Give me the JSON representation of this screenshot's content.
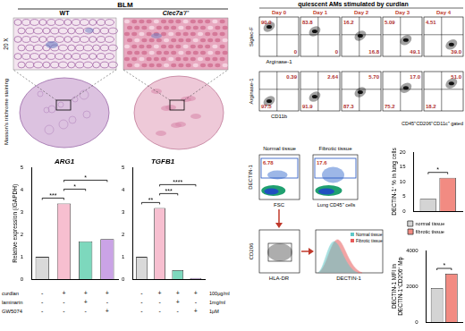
{
  "figure": {
    "histology": {
      "group_label": "BLM",
      "columns": [
        "WT",
        "Clec7a⁻/⁻"
      ],
      "magnification": "20 X",
      "stain": "Masson's trichrome staining"
    },
    "flow_timecourse": {
      "title": "quiescent AMs stimulated by curdlan",
      "days": [
        "Day 0",
        "Day 1",
        "Day 2",
        "Day 3",
        "Day 4"
      ],
      "rows": [
        {
          "y_label": "Siglec-F",
          "x_label": "Arginase-1",
          "upper": [
            "90.0",
            "83.8",
            "16.2",
            "5.09",
            "4.51"
          ],
          "lower": [
            "0",
            "0",
            "16.8",
            "49.1",
            "39.0"
          ]
        },
        {
          "y_label": "Arginase-1",
          "x_label": "CD11b",
          "upper": [
            "0.39",
            "2.64",
            "5.70",
            "17.0",
            "51.0"
          ],
          "lower": [
            "97.5",
            "91.9",
            "87.3",
            "75.2",
            "18.2"
          ]
        }
      ],
      "gate": "CD45⁺CD206⁺CD11c⁺ gated"
    },
    "tissue_flow": {
      "y_label": "DECTIN-1",
      "x_label": "FSC",
      "gated_on": "Lung CD45⁺ cells",
      "panels": [
        {
          "title": "Normal tissue",
          "gate": "6.78"
        },
        {
          "title": "Fibrotic tissue",
          "gate": "17.6"
        }
      ],
      "sub_y_label": "CD206",
      "sub_x_label": "HLA-DR",
      "histogram": {
        "legend": [
          "Normal tissue",
          "Fibrotic tissue"
        ],
        "colors": [
          "#5ec8c8",
          "#e85a5a"
        ],
        "x_label": "DECTIN-1"
      }
    },
    "qpcr_conditions": [
      {
        "agent": "curdlan",
        "signs": [
          "-",
          "+",
          "+",
          "+"
        ],
        "dose": "100μg/ml"
      },
      {
        "agent": "laminarin",
        "signs": [
          "-",
          "-",
          "+",
          "-"
        ],
        "dose": "1mg/ml"
      },
      {
        "agent": "GW5074",
        "signs": [
          "-",
          "-",
          "-",
          "+"
        ],
        "dose": "1μM"
      }
    ]
  },
  "chart_data": [
    {
      "type": "bar",
      "title": "ARG1",
      "y_label": "Relative expression (/GAPDH)",
      "categories": [
        null,
        null,
        null,
        null
      ],
      "values": [
        1.0,
        3.4,
        1.7,
        1.8
      ],
      "colors": [
        "#d9d9d9",
        "#f7bfd0",
        "#7dd8bd",
        "#caa3e6"
      ],
      "ylim": [
        0,
        5
      ],
      "yticks": [
        0,
        1,
        2,
        3,
        4,
        5
      ],
      "grid": false,
      "tick_labels": "y",
      "annotations": [
        {
          "text": "***",
          "pair": [
            0,
            1
          ]
        },
        {
          "text": "*",
          "pair": [
            1,
            2
          ]
        },
        {
          "text": "*",
          "pair": [
            1,
            3
          ]
        }
      ]
    },
    {
      "type": "bar",
      "title": "TGFB1",
      "categories": [
        null,
        null,
        null,
        null
      ],
      "values": [
        1.0,
        3.2,
        0.4,
        0.05
      ],
      "colors": [
        "#d9d9d9",
        "#f7bfd0",
        "#7dd8bd",
        "#caa3e6"
      ],
      "ylim": [
        0,
        5
      ],
      "yticks": [
        0,
        1,
        2,
        3,
        4,
        5
      ],
      "grid": false,
      "tick_labels": "y",
      "annotations": [
        {
          "text": "**",
          "pair": [
            0,
            1
          ]
        },
        {
          "text": "***",
          "pair": [
            1,
            2
          ]
        },
        {
          "text": "****",
          "pair": [
            1,
            3
          ]
        }
      ]
    },
    {
      "type": "bar",
      "y_label": "DECTIN-1⁺ % in lung cells",
      "categories": [
        null
      ],
      "series": [
        {
          "name": "normal tissue",
          "color": "#d4d4d4",
          "values": [
            4.2
          ]
        },
        {
          "name": "fibrotic tissue",
          "color": "#f28b82",
          "values": [
            11.3
          ]
        }
      ],
      "ylim": [
        0,
        20
      ],
      "yticks": [
        0,
        5,
        10,
        15,
        20
      ],
      "grid": false,
      "tick_labels": "y",
      "legend": "bottom",
      "annotations": [
        {
          "text": "*",
          "pair": [
            0,
            1
          ]
        }
      ]
    },
    {
      "type": "bar",
      "y_label": [
        "DECTIN-1 MFI in",
        "DECTIN-1⁺CD206⁺ Mφ"
      ],
      "categories": [
        null
      ],
      "series": [
        {
          "name": "normal tissue",
          "color": "#d4d4d4",
          "values": [
            1900
          ]
        },
        {
          "name": "fibrotic tissue",
          "color": "#f28b82",
          "values": [
            2700
          ]
        }
      ],
      "ylim": [
        0,
        4000
      ],
      "yticks": [
        0,
        2000,
        4000
      ],
      "grid": false,
      "tick_labels": "y",
      "annotations": [
        {
          "text": "*",
          "pair": [
            0,
            1
          ]
        }
      ]
    }
  ]
}
